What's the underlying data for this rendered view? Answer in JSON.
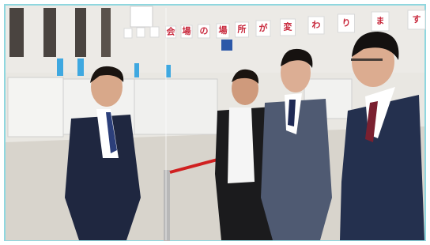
{
  "banner": {
    "characters": [
      "会",
      "場",
      "の",
      "場",
      "所",
      "が",
      "変",
      "わ",
      "り",
      "ま",
      "す"
    ]
  }
}
